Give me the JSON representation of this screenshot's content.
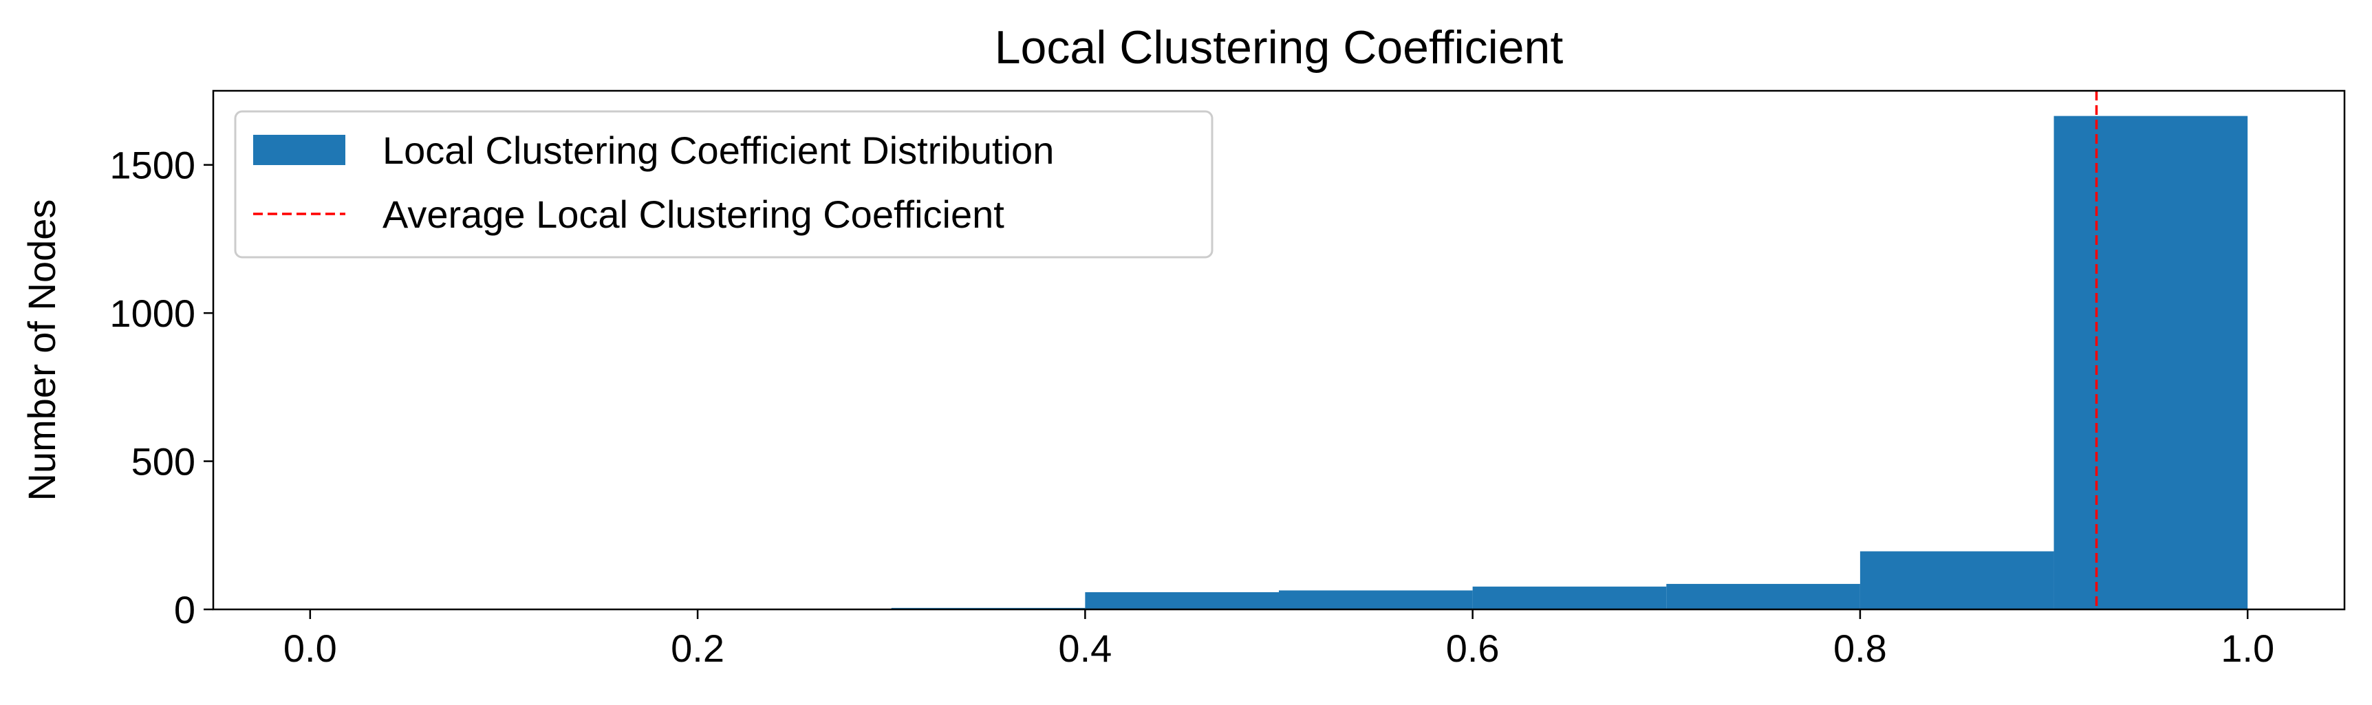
{
  "chart_data": {
    "type": "bar",
    "title": "Local Clustering Coefficient",
    "xlabel": "",
    "ylabel": "Number of Nodes",
    "xlim": [
      -0.05,
      1.05
    ],
    "ylim": [
      0,
      1750
    ],
    "xticks": [
      0.0,
      0.2,
      0.4,
      0.6,
      0.8,
      1.0
    ],
    "xtick_labels": [
      "0.0",
      "0.2",
      "0.4",
      "0.6",
      "0.8",
      "1.0"
    ],
    "yticks": [
      0,
      500,
      1000,
      1500
    ],
    "ytick_labels": [
      "0",
      "500",
      "1000",
      "1500"
    ],
    "grid": false,
    "legend_position": "upper-left",
    "bins": [
      {
        "x0": 0.0,
        "x1": 0.1,
        "count": 0
      },
      {
        "x0": 0.1,
        "x1": 0.2,
        "count": 0
      },
      {
        "x0": 0.2,
        "x1": 0.3,
        "count": 0
      },
      {
        "x0": 0.3,
        "x1": 0.4,
        "count": 5
      },
      {
        "x0": 0.4,
        "x1": 0.5,
        "count": 58
      },
      {
        "x0": 0.5,
        "x1": 0.6,
        "count": 64
      },
      {
        "x0": 0.6,
        "x1": 0.7,
        "count": 77
      },
      {
        "x0": 0.7,
        "x1": 0.8,
        "count": 86
      },
      {
        "x0": 0.8,
        "x1": 0.9,
        "count": 196
      },
      {
        "x0": 0.9,
        "x1": 1.0,
        "count": 1665
      }
    ],
    "series": [
      {
        "name": "Local Clustering Coefficient Distribution",
        "kind": "histogram",
        "color": "#1f77b4"
      },
      {
        "name": "Average Local Clustering Coefficient",
        "kind": "vline",
        "x": 0.922,
        "color": "#ff0000",
        "linestyle": "dashed"
      }
    ]
  }
}
